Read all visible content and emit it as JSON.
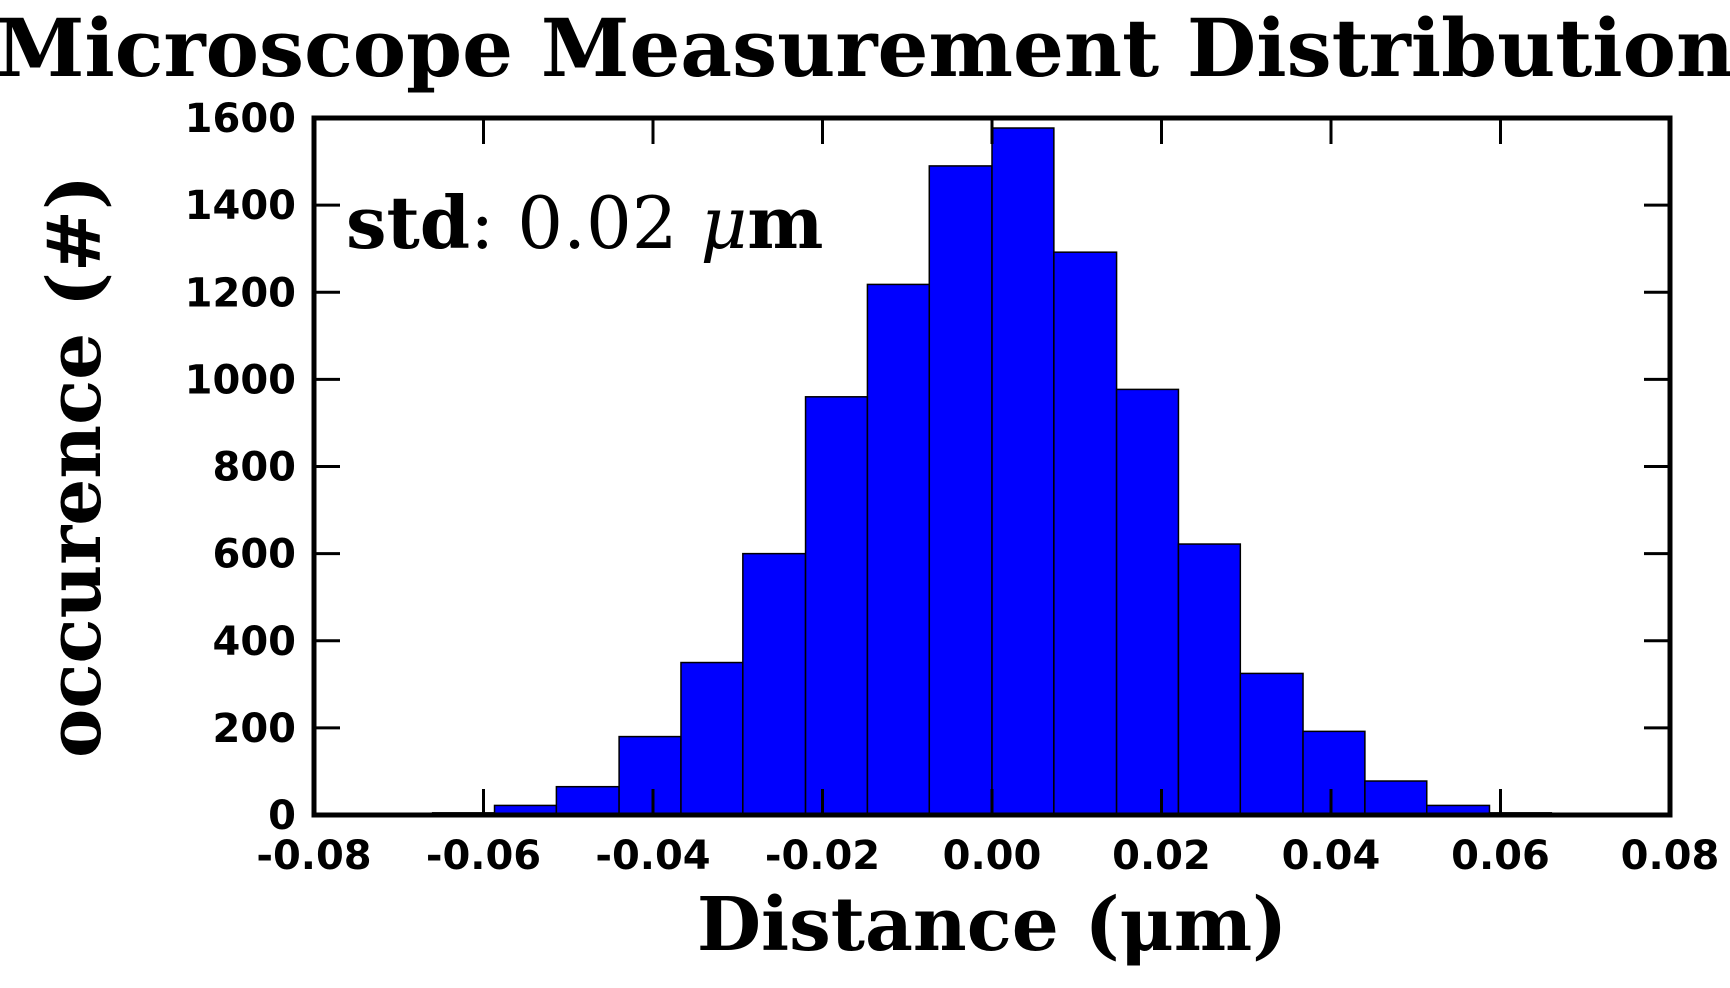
{
  "chart_data": {
    "type": "bar",
    "title": "Microscope Measurement Distribution",
    "xlabel": "Distance (μm)",
    "ylabel": "occurence (#)",
    "xlim": [
      -0.08,
      0.08
    ],
    "ylim": [
      0,
      1600
    ],
    "xticks": [
      "-0.08",
      "-0.06",
      "-0.04",
      "-0.02",
      "0.00",
      "0.02",
      "0.04",
      "0.06",
      "0.08"
    ],
    "yticks": [
      "0",
      "200",
      "400",
      "600",
      "800",
      "1000",
      "1200",
      "1400",
      "1600"
    ],
    "grid": false,
    "bar_color": "#0000ff",
    "bar_edge_color": "#000000",
    "bins": [
      {
        "x0": -0.066,
        "x1": -0.0587,
        "value": 5
      },
      {
        "x0": -0.0587,
        "x1": -0.0514,
        "value": 22
      },
      {
        "x0": -0.0514,
        "x1": -0.044,
        "value": 65
      },
      {
        "x0": -0.044,
        "x1": -0.0367,
        "value": 180
      },
      {
        "x0": -0.0367,
        "x1": -0.0294,
        "value": 350
      },
      {
        "x0": -0.0294,
        "x1": -0.022,
        "value": 600
      },
      {
        "x0": -0.022,
        "x1": -0.0147,
        "value": 960
      },
      {
        "x0": -0.0147,
        "x1": -0.0074,
        "value": 1218
      },
      {
        "x0": -0.0074,
        "x1": 0.0,
        "value": 1490
      },
      {
        "x0": 0.0,
        "x1": 0.0073,
        "value": 1577
      },
      {
        "x0": 0.0073,
        "x1": 0.0147,
        "value": 1292
      },
      {
        "x0": 0.0147,
        "x1": 0.022,
        "value": 977
      },
      {
        "x0": 0.022,
        "x1": 0.0293,
        "value": 622
      },
      {
        "x0": 0.0293,
        "x1": 0.0367,
        "value": 325
      },
      {
        "x0": 0.0367,
        "x1": 0.044,
        "value": 192
      },
      {
        "x0": 0.044,
        "x1": 0.0513,
        "value": 78
      },
      {
        "x0": 0.0513,
        "x1": 0.0587,
        "value": 22
      },
      {
        "x0": 0.0587,
        "x1": 0.066,
        "value": 5
      }
    ],
    "annotation": {
      "label": "std",
      "separator": ": ",
      "value": "0.02",
      "unit_symbol": "μ",
      "unit_rest": "m"
    }
  }
}
